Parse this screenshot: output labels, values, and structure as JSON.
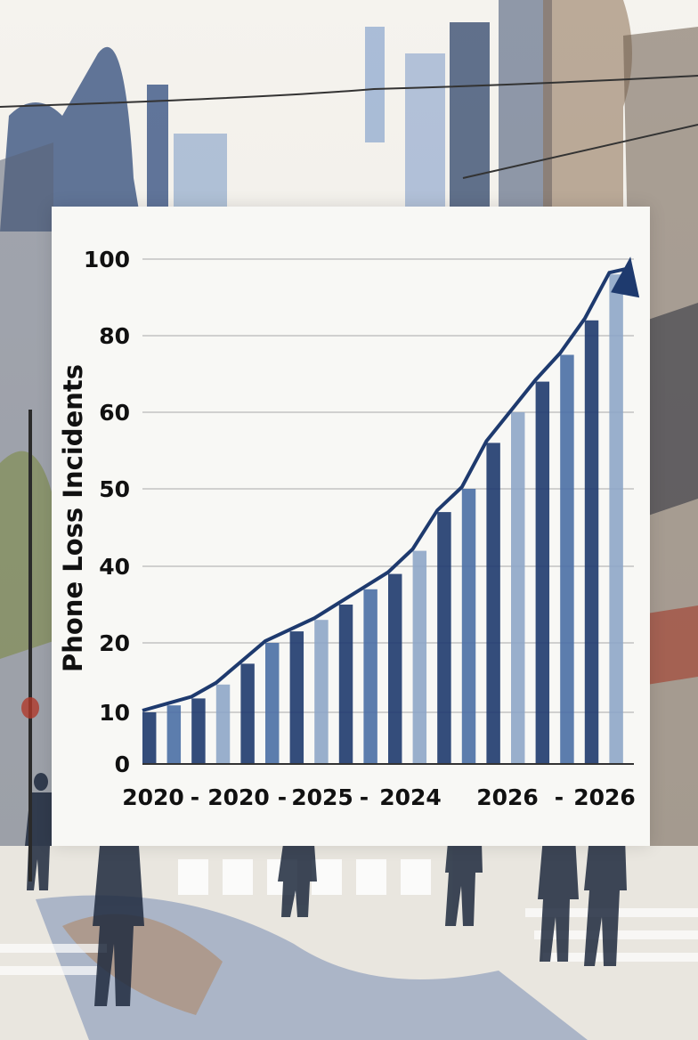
{
  "chart_data": {
    "type": "bar",
    "ylabel": "Phone Loss Incidents",
    "xlabel": "",
    "title": "",
    "y_ticks": [
      0,
      10,
      20,
      40,
      50,
      60,
      80,
      100
    ],
    "x_tick_labels": [
      "2020",
      "-",
      "2020",
      "-",
      "2025",
      "-",
      "2024",
      "2026",
      "-",
      "2026"
    ],
    "values": [
      10,
      11,
      12,
      14,
      17,
      20,
      23,
      26,
      30,
      34,
      38,
      42,
      47,
      50,
      56,
      60,
      68,
      75,
      84,
      96
    ],
    "trend_arrow": true,
    "grid": true,
    "colors": {
      "bar_dark": "#1e3a6e",
      "bar_mid": "#4a6fa5",
      "bar_light": "#8ea6c8",
      "stripe": "#fbfbf8",
      "grid": "#b9b9b9"
    }
  }
}
